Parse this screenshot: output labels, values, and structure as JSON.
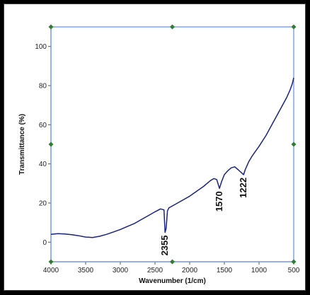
{
  "chart_data": {
    "type": "line",
    "xlabel": "Wavenumber (1/cm)",
    "ylabel": "Transmittance (%)",
    "xlim": [
      4000,
      500
    ],
    "ylim": [
      -10,
      110
    ],
    "x_reversed": true,
    "x_ticks": [
      4000,
      3500,
      3000,
      2500,
      2000,
      1500,
      1000,
      500
    ],
    "y_ticks": [
      0,
      20,
      40,
      60,
      80,
      100
    ],
    "grid": false,
    "colors": {
      "line": "#1a237e",
      "selection_box": "#5b8ff9",
      "handles": "#2e7d32",
      "x_axis": "#c8a000",
      "y_axis": "#c8a000"
    },
    "series": [
      {
        "values": [
          [
            4000,
            4
          ],
          [
            3900,
            4.4
          ],
          [
            3800,
            4.2
          ],
          [
            3700,
            3.8
          ],
          [
            3600,
            3.3
          ],
          [
            3500,
            2.6
          ],
          [
            3400,
            2.4
          ],
          [
            3300,
            3
          ],
          [
            3200,
            4
          ],
          [
            3100,
            5.2
          ],
          [
            3000,
            6.5
          ],
          [
            2900,
            8
          ],
          [
            2800,
            9.5
          ],
          [
            2700,
            11.5
          ],
          [
            2600,
            13.5
          ],
          [
            2500,
            15.5
          ],
          [
            2420,
            17
          ],
          [
            2370,
            16.5
          ],
          [
            2355,
            5
          ],
          [
            2340,
            7
          ],
          [
            2320,
            16
          ],
          [
            2300,
            17.5
          ],
          [
            2200,
            19.5
          ],
          [
            2100,
            21.5
          ],
          [
            2000,
            23.5
          ],
          [
            1900,
            26
          ],
          [
            1800,
            28.5
          ],
          [
            1700,
            31.5
          ],
          [
            1650,
            32.5
          ],
          [
            1610,
            32
          ],
          [
            1570,
            27.5
          ],
          [
            1540,
            31
          ],
          [
            1500,
            34.5
          ],
          [
            1450,
            36.5
          ],
          [
            1400,
            38
          ],
          [
            1350,
            38.5
          ],
          [
            1300,
            37
          ],
          [
            1222,
            34.5
          ],
          [
            1200,
            37
          ],
          [
            1150,
            41
          ],
          [
            1100,
            44
          ],
          [
            1000,
            49
          ],
          [
            900,
            54.5
          ],
          [
            800,
            61
          ],
          [
            700,
            67.5
          ],
          [
            600,
            74
          ],
          [
            550,
            78
          ],
          [
            520,
            81
          ],
          [
            500,
            84
          ]
        ]
      }
    ],
    "annotations": [
      {
        "text": "2355",
        "x": 2355,
        "y": 5
      },
      {
        "text": "1570",
        "x": 1570,
        "y": 27.5
      },
      {
        "text": "1222",
        "x": 1222,
        "y": 34.5
      }
    ]
  }
}
